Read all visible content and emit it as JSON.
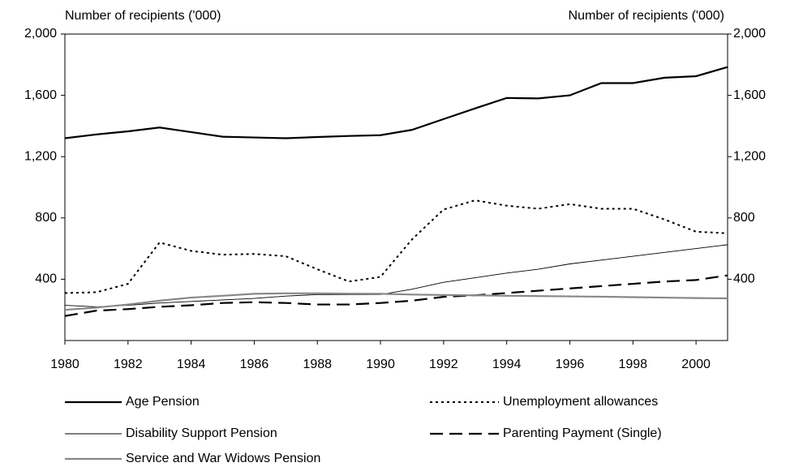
{
  "chart_data": {
    "type": "line",
    "ylabel": "Number of recipients ('000)",
    "y2label": "Number of recipients ('000)",
    "x": [
      1980,
      1981,
      1982,
      1983,
      1984,
      1985,
      1986,
      1987,
      1988,
      1989,
      1990,
      1991,
      1992,
      1993,
      1994,
      1995,
      1996,
      1997,
      1998,
      1999,
      2000,
      2001
    ],
    "xlim": [
      1980,
      2001
    ],
    "xticks": [
      1980,
      1982,
      1984,
      1986,
      1988,
      1990,
      1992,
      1994,
      1996,
      1998,
      2000
    ],
    "ylim": [
      0,
      2000
    ],
    "yticks": [
      400,
      800,
      {
        "value": 1200,
        "label": "1,200"
      },
      {
        "value": 1600,
        "label": "1,600"
      },
      {
        "value": 2000,
        "label": "2,000"
      }
    ],
    "y2lim": [
      0,
      2000
    ],
    "y2ticks": [
      400,
      800,
      {
        "value": 1200,
        "label": "1,200"
      },
      {
        "value": 1600,
        "label": "1,600"
      },
      {
        "value": 2000,
        "label": "2,000"
      }
    ],
    "series": [
      {
        "name": "Age Pension",
        "color": "#000000",
        "style": "thick",
        "values": [
          1320,
          1345,
          1365,
          1390,
          1360,
          1330,
          1325,
          1320,
          1328,
          1335,
          1340,
          1375,
          1445,
          1515,
          1583,
          1580,
          1600,
          1680,
          1680,
          1715,
          1725,
          1785
        ]
      },
      {
        "name": "Unemployment allowances",
        "color": "#000000",
        "style": "dotted",
        "values": [
          310,
          315,
          370,
          640,
          585,
          560,
          565,
          550,
          465,
          385,
          415,
          660,
          855,
          915,
          880,
          860,
          890,
          860,
          860,
          790,
          710,
          700
        ]
      },
      {
        "name": "Disability Support Pension",
        "color": "#000000",
        "style": "thin",
        "values": [
          230,
          220,
          230,
          245,
          255,
          265,
          275,
          290,
          300,
          300,
          300,
          335,
          380,
          410,
          440,
          465,
          500,
          525,
          550,
          575,
          600,
          625
        ]
      },
      {
        "name": "Parenting Payment (Single)",
        "color": "#000000",
        "style": "dashed",
        "values": [
          160,
          195,
          205,
          220,
          230,
          245,
          250,
          245,
          235,
          235,
          245,
          260,
          285,
          295,
          310,
          325,
          340,
          355,
          370,
          385,
          395,
          425
        ]
      },
      {
        "name": "Service and War Widows Pension",
        "color": "#888888",
        "style": "gray",
        "values": [
          200,
          215,
          235,
          260,
          280,
          292,
          305,
          308,
          308,
          306,
          305,
          300,
          297,
          295,
          292,
          290,
          288,
          286,
          283,
          280,
          277,
          275
        ]
      }
    ]
  }
}
